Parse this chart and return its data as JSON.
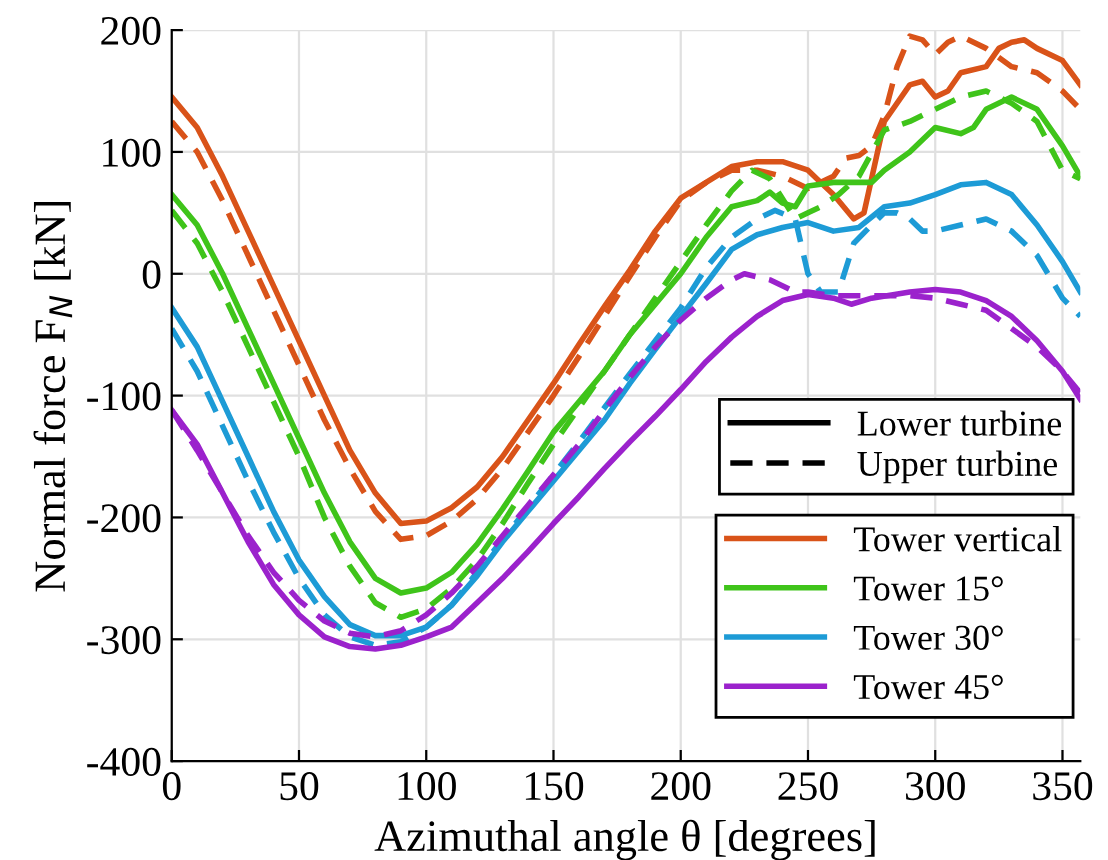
{
  "chart_data": {
    "type": "line",
    "xlabel": "Azimuthal angle θ [degrees]",
    "ylabel": "Normal force F$_{N}$ [kN]",
    "xlim": [
      0,
      357
    ],
    "xticks": [
      0,
      50,
      100,
      150,
      200,
      250,
      300,
      350
    ],
    "ylim": [
      -400,
      200
    ],
    "yticks": [
      -400,
      -300,
      -200,
      -100,
      0,
      100,
      200
    ],
    "grid": true,
    "legend": "right",
    "marker": "none",
    "annotations": [
      "Lower turbine",
      "Upper turbine"
    ],
    "series": [
      {
        "name": "Tower vertical",
        "color": "#d95319",
        "line_style": "solid",
        "x": [
          0,
          10,
          20,
          30,
          40,
          50,
          60,
          70,
          80,
          90,
          100,
          110,
          120,
          130,
          140,
          150,
          160,
          170,
          180,
          190,
          200,
          210,
          220,
          230,
          240,
          250,
          255,
          260,
          268,
          272,
          280,
          290,
          295,
          300,
          305,
          310,
          320,
          325,
          330,
          335,
          340,
          350,
          357
        ],
        "values": [
          145,
          120,
          80,
          35,
          -10,
          -55,
          -100,
          -145,
          -180,
          -205,
          -203,
          -192,
          -175,
          -150,
          -120,
          -90,
          -58,
          -27,
          3,
          35,
          62,
          75,
          88,
          92,
          92,
          85,
          75,
          65,
          45,
          50,
          125,
          155,
          158,
          145,
          150,
          165,
          170,
          185,
          190,
          192,
          185,
          175,
          155
        ]
      },
      {
        "name": null,
        "color": "#d95319",
        "line_style": "dashed",
        "x": [
          0,
          10,
          20,
          30,
          40,
          50,
          60,
          70,
          80,
          90,
          100,
          110,
          120,
          130,
          140,
          150,
          160,
          170,
          180,
          190,
          200,
          210,
          220,
          230,
          240,
          250,
          260,
          265,
          270,
          275,
          280,
          285,
          290,
          295,
          300,
          305,
          310,
          320,
          330,
          340,
          350,
          357
        ],
        "values": [
          125,
          100,
          60,
          15,
          -30,
          -75,
          -120,
          -160,
          -195,
          -218,
          -215,
          -203,
          -185,
          -160,
          -130,
          -100,
          -68,
          -35,
          -2,
          30,
          60,
          75,
          85,
          85,
          80,
          70,
          80,
          95,
          97,
          105,
          130,
          170,
          195,
          192,
          180,
          190,
          195,
          185,
          170,
          165,
          150,
          135
        ]
      },
      {
        "name": "Tower 15°",
        "color": "#3fc41a",
        "line_style": "solid",
        "x": [
          0,
          10,
          20,
          30,
          40,
          50,
          60,
          70,
          80,
          90,
          100,
          110,
          120,
          130,
          140,
          150,
          160,
          170,
          180,
          190,
          200,
          210,
          220,
          230,
          235,
          240,
          245,
          250,
          260,
          270,
          275,
          280,
          290,
          300,
          310,
          315,
          320,
          330,
          340,
          350,
          357
        ],
        "values": [
          65,
          40,
          0,
          -45,
          -90,
          -135,
          -180,
          -220,
          -250,
          -262,
          -258,
          -245,
          -222,
          -193,
          -162,
          -130,
          -105,
          -80,
          -50,
          -25,
          0,
          30,
          55,
          60,
          67,
          58,
          55,
          72,
          75,
          75,
          75,
          85,
          100,
          120,
          115,
          120,
          135,
          145,
          135,
          105,
          80
        ]
      },
      {
        "name": null,
        "color": "#3fc41a",
        "line_style": "dashed",
        "x": [
          0,
          10,
          20,
          30,
          40,
          50,
          60,
          70,
          80,
          90,
          100,
          110,
          120,
          130,
          140,
          150,
          160,
          170,
          180,
          190,
          200,
          210,
          220,
          228,
          235,
          245,
          250,
          255,
          262,
          270,
          280,
          290,
          300,
          310,
          320,
          330,
          340,
          350,
          357
        ],
        "values": [
          52,
          25,
          -15,
          -60,
          -105,
          -150,
          -200,
          -240,
          -270,
          -282,
          -275,
          -258,
          -235,
          -205,
          -172,
          -140,
          -110,
          -80,
          -50,
          -20,
          10,
          40,
          68,
          85,
          78,
          45,
          50,
          55,
          65,
          80,
          118,
          125,
          135,
          145,
          150,
          140,
          125,
          85,
          78
        ]
      },
      {
        "name": "Tower 30°",
        "color": "#1d9bd6",
        "line_style": "solid",
        "x": [
          0,
          10,
          20,
          30,
          40,
          50,
          60,
          70,
          80,
          90,
          100,
          110,
          120,
          130,
          140,
          150,
          160,
          170,
          180,
          190,
          200,
          210,
          220,
          230,
          240,
          250,
          260,
          270,
          280,
          290,
          300,
          310,
          320,
          330,
          340,
          350,
          357
        ],
        "values": [
          -28,
          -60,
          -105,
          -150,
          -195,
          -235,
          -265,
          -288,
          -297,
          -297,
          -290,
          -272,
          -248,
          -220,
          -195,
          -170,
          -145,
          -120,
          -90,
          -62,
          -35,
          -8,
          20,
          32,
          38,
          42,
          35,
          38,
          55,
          58,
          65,
          73,
          75,
          65,
          40,
          10,
          -15
        ]
      },
      {
        "name": null,
        "color": "#1d9bd6",
        "line_style": "dashed",
        "x": [
          0,
          10,
          20,
          30,
          40,
          50,
          60,
          70,
          80,
          90,
          100,
          110,
          120,
          130,
          140,
          150,
          160,
          170,
          180,
          190,
          200,
          210,
          220,
          230,
          237,
          245,
          250,
          255,
          262,
          268,
          275,
          280,
          285,
          290,
          295,
          300,
          310,
          320,
          330,
          340,
          350,
          357
        ],
        "values": [
          -45,
          -80,
          -125,
          -170,
          -212,
          -250,
          -280,
          -298,
          -305,
          -302,
          -290,
          -272,
          -245,
          -218,
          -192,
          -165,
          -138,
          -110,
          -82,
          -55,
          -28,
          5,
          30,
          45,
          52,
          45,
          0,
          -15,
          -15,
          25,
          40,
          50,
          50,
          45,
          35,
          35,
          40,
          45,
          35,
          15,
          -20,
          -35
        ]
      },
      {
        "name": "Tower 45°",
        "color": "#9b22cc",
        "line_style": "solid",
        "x": [
          0,
          10,
          20,
          30,
          40,
          50,
          60,
          70,
          80,
          90,
          100,
          110,
          120,
          130,
          140,
          150,
          160,
          170,
          180,
          190,
          200,
          210,
          220,
          230,
          240,
          250,
          260,
          267,
          275,
          290,
          300,
          310,
          320,
          330,
          340,
          350,
          357
        ],
        "values": [
          -112,
          -140,
          -180,
          -220,
          -255,
          -280,
          -298,
          -306,
          -308,
          -305,
          -298,
          -290,
          -270,
          -250,
          -228,
          -205,
          -183,
          -160,
          -138,
          -117,
          -95,
          -72,
          -52,
          -35,
          -22,
          -17,
          -20,
          -25,
          -20,
          -15,
          -13,
          -15,
          -22,
          -35,
          -55,
          -80,
          -103
        ]
      },
      {
        "name": null,
        "color": "#9b22cc",
        "line_style": "dashed",
        "x": [
          0,
          10,
          20,
          30,
          40,
          50,
          60,
          70,
          80,
          90,
          100,
          110,
          120,
          130,
          140,
          150,
          160,
          170,
          180,
          190,
          200,
          210,
          220,
          225,
          235,
          245,
          250,
          260,
          270,
          280,
          290,
          300,
          310,
          320,
          330,
          340,
          350,
          357
        ],
        "values": [
          -112,
          -145,
          -180,
          -215,
          -245,
          -268,
          -285,
          -295,
          -298,
          -293,
          -280,
          -262,
          -240,
          -215,
          -190,
          -165,
          -140,
          -112,
          -85,
          -60,
          -38,
          -20,
          -5,
          0,
          -5,
          -15,
          -15,
          -18,
          -18,
          -18,
          -18,
          -20,
          -25,
          -30,
          -45,
          -60,
          -80,
          -98
        ]
      }
    ]
  }
}
